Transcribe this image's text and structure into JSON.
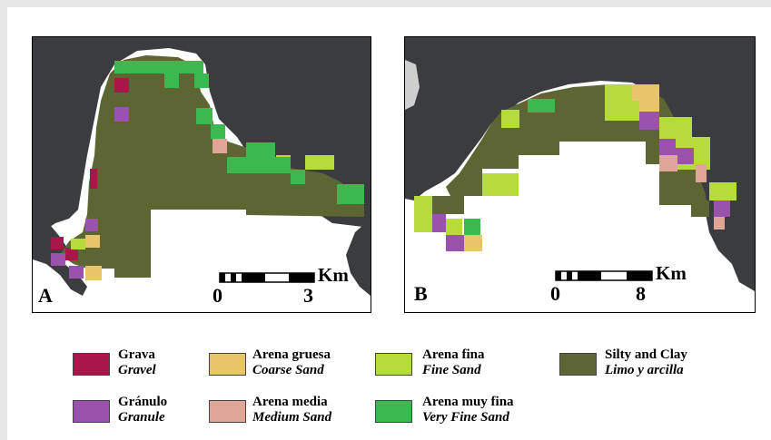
{
  "panels": {
    "a": {
      "letter": "A",
      "scale": {
        "start": "0",
        "end": "3",
        "unit": "Km"
      }
    },
    "b": {
      "letter": "B",
      "scale": {
        "start": "0",
        "end": "8",
        "unit": "Km"
      }
    }
  },
  "legend": {
    "items": [
      {
        "es": "Grava",
        "en": "Gravel",
        "color": "#a8164a"
      },
      {
        "es": "Arena gruesa",
        "en": "Coarse Sand",
        "color": "#e8c56a"
      },
      {
        "es": "Arena fina",
        "en": "Fine Sand",
        "color": "#b5dc3a"
      },
      {
        "es": "Silty and Clay",
        "en": "Limo y arcilla",
        "color": "#5d6633"
      },
      {
        "es": "Gránulo",
        "en": "Granule",
        "color": "#9a52ad"
      },
      {
        "es": "Arena media",
        "en": "Medium Sand",
        "color": "#dfa697"
      },
      {
        "es": "Arena muy fina",
        "en": "Very Fine Sand",
        "color": "#3cb84e"
      }
    ]
  },
  "colors": {
    "land": "#3a3c3f",
    "sea": "#ffffff",
    "silty_clay": "#5d6633"
  }
}
